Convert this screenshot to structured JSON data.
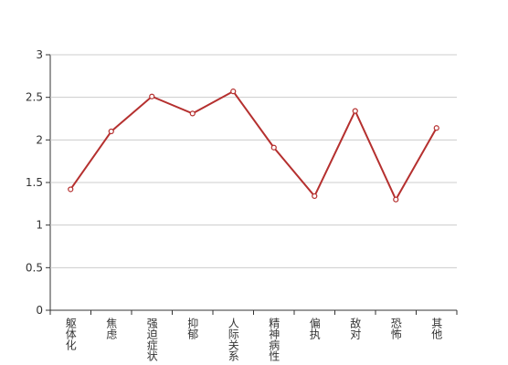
{
  "chart_data": {
    "type": "line",
    "categories": [
      "躯体化",
      "焦虑",
      "强迫症状",
      "抑郁",
      "人际关系",
      "精神病性",
      "偏执",
      "敌对",
      "恐怖",
      "其他"
    ],
    "values": [
      1.42,
      2.1,
      2.51,
      2.31,
      2.57,
      1.91,
      1.34,
      2.34,
      1.3,
      2.14
    ],
    "color": "#b5302f",
    "ylim": [
      0,
      3
    ],
    "yticks": [
      0,
      0.5,
      1,
      1.5,
      2,
      2.5,
      3
    ],
    "grid": true
  }
}
